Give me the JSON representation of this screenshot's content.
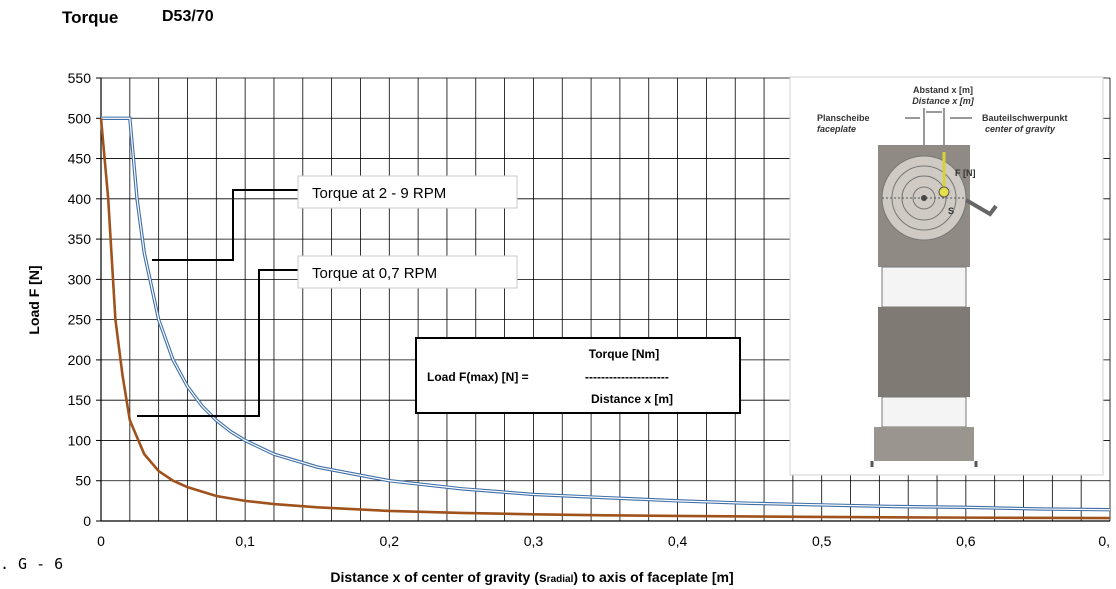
{
  "header": {
    "title": "Torque",
    "model": "D53/70"
  },
  "figure_label": ". G - 6",
  "chart_data": {
    "type": "line",
    "title": "Torque",
    "xlabel_parts": [
      "Distance x of center of gravity (s",
      "radial",
      ") to axis of faceplate [m]"
    ],
    "ylabel": "Load F [N]",
    "xlim": [
      0,
      0.7
    ],
    "ylim": [
      0,
      550
    ],
    "grid": true,
    "x_ticks": [
      0,
      0.1,
      0.2,
      0.3,
      0.4,
      0.5,
      0.6,
      0.7
    ],
    "x_tick_labels": [
      "0",
      "0,1",
      "0,2",
      "0,3",
      "0,4",
      "0,5",
      "0,6",
      "0,"
    ],
    "y_ticks": [
      0,
      50,
      100,
      150,
      200,
      250,
      300,
      350,
      400,
      450,
      500,
      550
    ],
    "y_tick_labels": [
      "0",
      "50",
      "100",
      "150",
      "200",
      "250",
      "300",
      "350",
      "400",
      "450",
      "500",
      "550"
    ],
    "series": [
      {
        "name": "Torque at 2 - 9 RPM",
        "color": "#3f6fa8",
        "style": "double-line",
        "x": [
          0,
          0.02,
          0.025,
          0.03,
          0.04,
          0.05,
          0.06,
          0.07,
          0.08,
          0.09,
          0.1,
          0.12,
          0.15,
          0.2,
          0.25,
          0.3,
          0.35,
          0.4,
          0.45,
          0.5,
          0.55,
          0.6,
          0.65,
          0.7
        ],
        "values": [
          500,
          500,
          400,
          333,
          250,
          200,
          167,
          143,
          125,
          111,
          100,
          83,
          67,
          50,
          40,
          33,
          29,
          25,
          22,
          20,
          18,
          17,
          15,
          14
        ]
      },
      {
        "name": "Torque at 0,7 RPM",
        "color": "#a0521c",
        "style": "solid",
        "x": [
          0,
          0.005,
          0.01,
          0.015,
          0.02,
          0.03,
          0.04,
          0.05,
          0.06,
          0.08,
          0.1,
          0.12,
          0.15,
          0.2,
          0.25,
          0.3,
          0.35,
          0.4,
          0.5,
          0.6,
          0.7
        ],
        "values": [
          500,
          400,
          250,
          180,
          125,
          83,
          62,
          50,
          42,
          31,
          25,
          21,
          17,
          12.5,
          10,
          8.3,
          7.1,
          6.3,
          5,
          4.2,
          3.6
        ]
      }
    ],
    "annotations": [
      {
        "text": "Torque at 2 - 9 RPM"
      },
      {
        "text": "Torque at 0,7 RPM"
      }
    ],
    "formula": {
      "lhs": "Load  F(max) [N] =",
      "numerator": "Torque [Nm]",
      "divider": "---------------------",
      "denominator": "Distance x [m]"
    },
    "photo_labels": {
      "abstand": "Abstand x [m]",
      "distance": "Distance x [m]",
      "planscheibe": "Planscheibe",
      "faceplate": "faceplate",
      "schwerpunkt": "Bauteilschwerpunkt",
      "cog": "center of gravity",
      "force": "F [N]",
      "s": "S"
    }
  }
}
